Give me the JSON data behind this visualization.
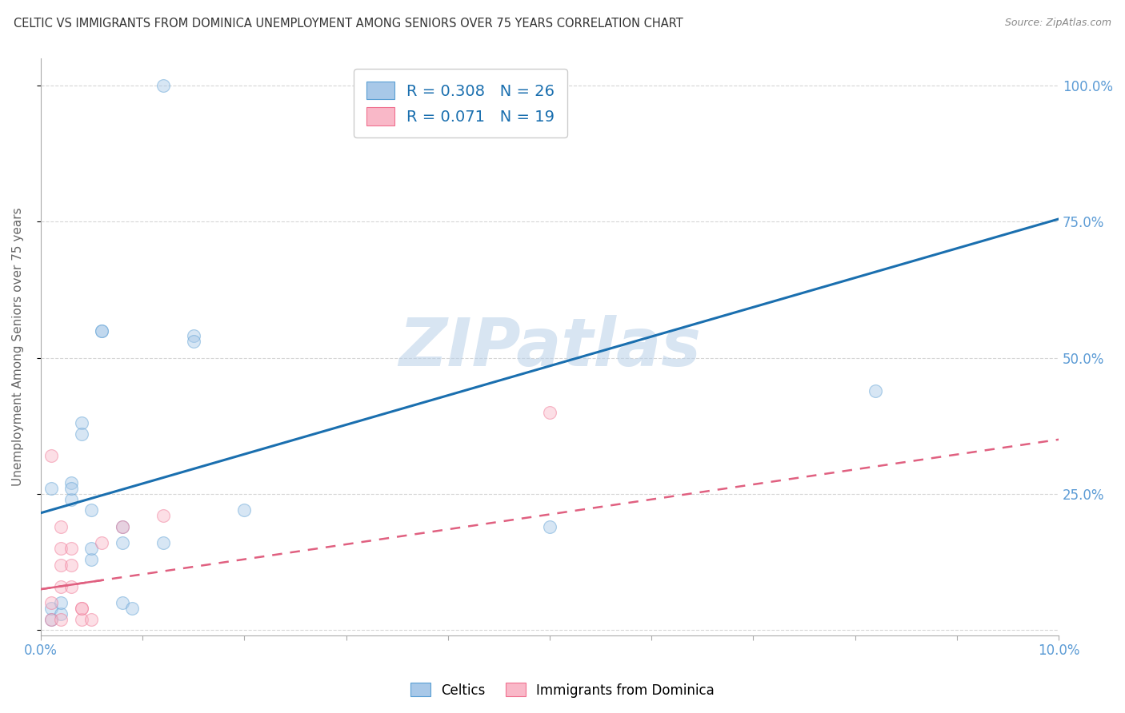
{
  "title": "CELTIC VS IMMIGRANTS FROM DOMINICA UNEMPLOYMENT AMONG SENIORS OVER 75 YEARS CORRELATION CHART",
  "source": "Source: ZipAtlas.com",
  "ylabel": "Unemployment Among Seniors over 75 years",
  "xlim": [
    0.0,
    0.1
  ],
  "ylim": [
    -0.01,
    1.05
  ],
  "xticks": [
    0.0,
    0.01,
    0.02,
    0.03,
    0.04,
    0.05,
    0.06,
    0.07,
    0.08,
    0.09,
    0.1
  ],
  "ytick_positions": [
    0.0,
    0.25,
    0.5,
    0.75,
    1.0
  ],
  "yticklabels": [
    "",
    "25.0%",
    "50.0%",
    "75.0%",
    "100.0%"
  ],
  "celtic_color": "#a8c8e8",
  "celtic_edge_color": "#5a9fd4",
  "dominica_color": "#f9b8c8",
  "dominica_edge_color": "#f07090",
  "trend_color_celtic": "#1a6faf",
  "trend_color_dominica": "#e06080",
  "R_celtic": 0.308,
  "N_celtic": 26,
  "R_dominica": 0.071,
  "N_dominica": 19,
  "legend_label_celtic": "Celtics",
  "legend_label_dominica": "Immigrants from Dominica",
  "watermark": "ZIPatlas",
  "celtic_x": [
    0.001,
    0.001,
    0.002,
    0.002,
    0.003,
    0.003,
    0.003,
    0.004,
    0.004,
    0.005,
    0.005,
    0.005,
    0.006,
    0.006,
    0.008,
    0.008,
    0.008,
    0.009,
    0.012,
    0.012,
    0.015,
    0.015,
    0.02,
    0.05,
    0.082,
    0.001
  ],
  "celtic_y": [
    0.02,
    0.04,
    0.03,
    0.05,
    0.27,
    0.24,
    0.26,
    0.38,
    0.36,
    0.22,
    0.13,
    0.15,
    0.55,
    0.55,
    0.19,
    0.16,
    0.05,
    0.04,
    0.16,
    1.0,
    0.54,
    0.53,
    0.22,
    0.19,
    0.44,
    0.26
  ],
  "dominica_x": [
    0.001,
    0.001,
    0.001,
    0.002,
    0.002,
    0.002,
    0.002,
    0.002,
    0.003,
    0.003,
    0.003,
    0.004,
    0.004,
    0.004,
    0.005,
    0.006,
    0.008,
    0.05,
    0.012
  ],
  "dominica_y": [
    0.02,
    0.05,
    0.32,
    0.19,
    0.15,
    0.12,
    0.08,
    0.02,
    0.15,
    0.12,
    0.08,
    0.04,
    0.02,
    0.04,
    0.02,
    0.16,
    0.19,
    0.4,
    0.21
  ],
  "celtic_trend_x0": 0.0,
  "celtic_trend_y0": 0.215,
  "celtic_trend_x1": 0.1,
  "celtic_trend_y1": 0.755,
  "dominica_trend_x0": 0.0,
  "dominica_trend_y0": 0.075,
  "dominica_trend_x1": 0.1,
  "dominica_trend_y1": 0.35,
  "background_color": "#ffffff",
  "grid_color": "#cccccc",
  "title_color": "#333333",
  "axis_label_color": "#666666",
  "tick_label_color": "#5b9bd5",
  "marker_size": 130,
  "marker_alpha": 0.45,
  "legend_R_color": "#1a6faf"
}
